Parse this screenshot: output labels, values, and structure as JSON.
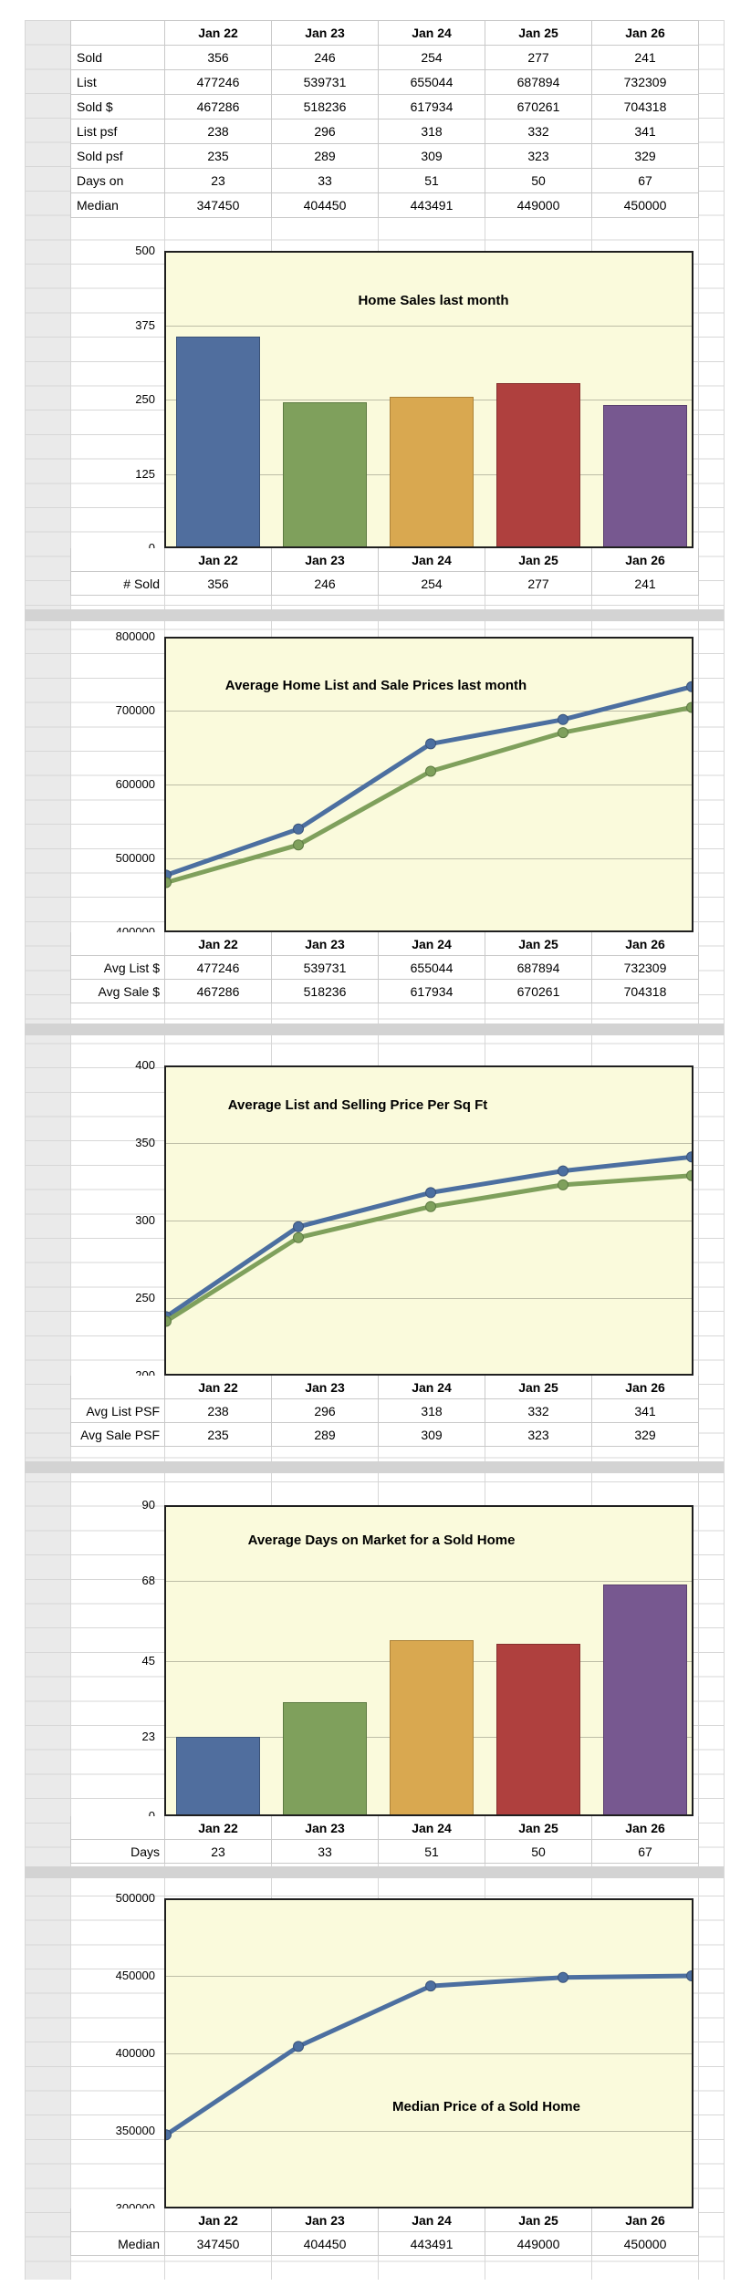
{
  "sheet": {
    "kind": "spreadsheet report of monthly home sales statistics"
  },
  "columns": [
    "Jan 22",
    "Jan 23",
    "Jan 24",
    "Jan 25",
    "Jan 26"
  ],
  "top_table": {
    "rows": [
      {
        "label": "Sold",
        "values": [
          356,
          246,
          254,
          277,
          241
        ]
      },
      {
        "label": "List",
        "values": [
          477246,
          539731,
          655044,
          687894,
          732309
        ]
      },
      {
        "label": "Sold $",
        "values": [
          467286,
          518236,
          617934,
          670261,
          704318
        ]
      },
      {
        "label": "List psf",
        "values": [
          238,
          296,
          318,
          332,
          341
        ]
      },
      {
        "label": "Sold psf",
        "values": [
          235,
          289,
          309,
          323,
          329
        ]
      },
      {
        "label": "Days on",
        "values": [
          23,
          33,
          51,
          50,
          67
        ]
      },
      {
        "label": "Median",
        "values": [
          347450,
          404450,
          443491,
          449000,
          450000
        ]
      }
    ]
  },
  "chart_data": [
    {
      "type": "bar",
      "title": "Home Sales last month",
      "categories": [
        "Jan 22",
        "Jan 23",
        "Jan 24",
        "Jan 25",
        "Jan 26"
      ],
      "series": [
        {
          "name": "# Sold",
          "values": [
            356,
            246,
            254,
            277,
            241
          ]
        }
      ],
      "ylim": [
        0,
        500
      ],
      "ticks": [
        500,
        375,
        250,
        125,
        0
      ],
      "grid": true,
      "legend": "none",
      "plot_bg": "#FAFADC",
      "bar_colors": [
        "#506E9E",
        "#7FA05C",
        "#D9A850",
        "#AF403E",
        "#775890"
      ],
      "bar_border_colors": [
        "#3A5276",
        "#5D7A42",
        "#AD8338",
        "#86302F",
        "#59406E"
      ]
    },
    {
      "type": "line",
      "title": "Average Home List and Sale Prices last month",
      "categories": [
        "Jan 22",
        "Jan 23",
        "Jan 24",
        "Jan 25",
        "Jan 26"
      ],
      "series": [
        {
          "name": "Avg List $",
          "values": [
            477246,
            539731,
            655044,
            687894,
            732309
          ],
          "color": "#4C6FA0",
          "marker_edge": "#39527A"
        },
        {
          "name": "Avg Sale $",
          "values": [
            467286,
            518236,
            617934,
            670261,
            704318
          ],
          "color": "#7FA05C",
          "marker_edge": "#5D7A42"
        }
      ],
      "ylim": [
        400000,
        800000
      ],
      "ticks": [
        800000,
        700000,
        600000,
        500000,
        400000
      ],
      "grid": true,
      "legend": "none",
      "plot_bg": "#FAFADC"
    },
    {
      "type": "line",
      "title": "Average List and Selling Price Per Sq Ft",
      "categories": [
        "Jan 22",
        "Jan 23",
        "Jan 24",
        "Jan 25",
        "Jan 26"
      ],
      "series": [
        {
          "name": "Avg List PSF",
          "values": [
            238,
            296,
            318,
            332,
            341
          ],
          "color": "#4C6FA0",
          "marker_edge": "#39527A"
        },
        {
          "name": "Avg Sale PSF",
          "values": [
            235,
            289,
            309,
            323,
            329
          ],
          "color": "#7FA05C",
          "marker_edge": "#5D7A42"
        }
      ],
      "ylim": [
        200,
        400
      ],
      "ticks": [
        400,
        350,
        300,
        250,
        200
      ],
      "grid": true,
      "legend": "none",
      "plot_bg": "#FAFADC"
    },
    {
      "type": "bar",
      "title": "Average Days on Market for a Sold Home",
      "categories": [
        "Jan 22",
        "Jan 23",
        "Jan 24",
        "Jan 25",
        "Jan 26"
      ],
      "series": [
        {
          "name": "Days",
          "values": [
            23,
            33,
            51,
            50,
            67
          ]
        }
      ],
      "ylim": [
        0,
        90
      ],
      "ticks": [
        90,
        68,
        45,
        23,
        0
      ],
      "grid": true,
      "legend": "none",
      "plot_bg": "#FAFADC",
      "bar_colors": [
        "#506E9E",
        "#7FA05C",
        "#D9A850",
        "#AF403E",
        "#775890"
      ],
      "bar_border_colors": [
        "#3A5276",
        "#5D7A42",
        "#AD8338",
        "#86302F",
        "#59406E"
      ]
    },
    {
      "type": "line",
      "title": "Median Price of a Sold Home",
      "categories": [
        "Jan 22",
        "Jan 23",
        "Jan 24",
        "Jan 25",
        "Jan 26"
      ],
      "series": [
        {
          "name": "Median",
          "values": [
            347450,
            404450,
            443491,
            449000,
            450000
          ],
          "color": "#4C6FA0",
          "marker_edge": "#39527A"
        }
      ],
      "ylim": [
        300000,
        500000
      ],
      "ticks": [
        500000,
        450000,
        400000,
        350000,
        300000
      ],
      "grid": true,
      "legend": "none",
      "plot_bg": "#FAFADC"
    }
  ]
}
